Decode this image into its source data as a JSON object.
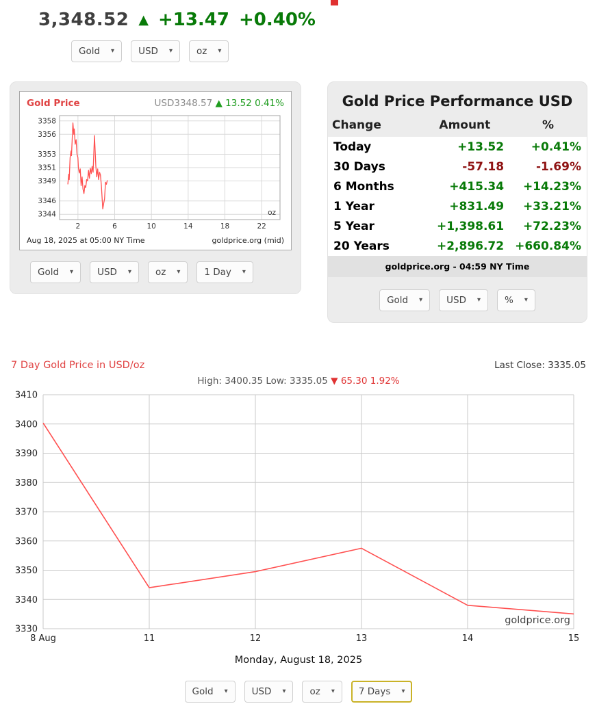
{
  "colors": {
    "green": "#087a08",
    "negative_red": "#8f1313",
    "title_red": "#e04343",
    "line_red": "#ff5050",
    "price_gray": "#3f3f3f"
  },
  "header": {
    "price": "3,348.52",
    "arrow": "▲",
    "change": "+13.47",
    "change_pct": "+0.40%",
    "selectors": [
      {
        "name": "metal",
        "value": "Gold"
      },
      {
        "name": "currency",
        "value": "USD"
      },
      {
        "name": "unit",
        "value": "oz"
      }
    ]
  },
  "mini_chart_panel": {
    "title": "Gold Price",
    "quote_price": "USD3348.57",
    "quote_change": "▲ 13.52 0.41%",
    "timestamp": "Aug 18, 2025 at 05:00 NY Time",
    "source": "goldprice.org (mid)",
    "selectors": [
      {
        "name": "metal",
        "value": "Gold"
      },
      {
        "name": "currency",
        "value": "USD"
      },
      {
        "name": "unit",
        "value": "oz"
      },
      {
        "name": "period",
        "value": "1 Day"
      }
    ]
  },
  "performance_panel": {
    "title": "Gold Price Performance USD",
    "columns": [
      "Change",
      "Amount",
      "%"
    ],
    "rows": [
      {
        "label": "Today",
        "amount": "+13.52",
        "pct": "+0.41%"
      },
      {
        "label": "30 Days",
        "amount": "-57.18",
        "pct": "-1.69%"
      },
      {
        "label": "6 Months",
        "amount": "+415.34",
        "pct": "+14.23%"
      },
      {
        "label": "1 Year",
        "amount": "+831.49",
        "pct": "+33.21%"
      },
      {
        "label": "5 Year",
        "amount": "+1,398.61",
        "pct": "+72.23%"
      },
      {
        "label": "20 Years",
        "amount": "+2,896.72",
        "pct": "+660.84%"
      }
    ],
    "footer": "goldprice.org - 04:59 NY Time",
    "selectors": [
      {
        "name": "metal",
        "value": "Gold"
      },
      {
        "name": "currency",
        "value": "USD"
      },
      {
        "name": "display",
        "value": "%"
      }
    ]
  },
  "main_chart": {
    "title": "7 Day Gold Price in USD/oz",
    "last_close_label": "Last Close: 3335.05",
    "high_low_label": "High: 3400.35 Low: 3335.05",
    "change_label": "▼ 65.30 1.92%",
    "date_label": "Monday, August 18, 2025",
    "selectors": [
      {
        "name": "metal",
        "value": "Gold"
      },
      {
        "name": "currency",
        "value": "USD"
      },
      {
        "name": "unit",
        "value": "oz"
      },
      {
        "name": "period",
        "value": "7 Days",
        "highlight": true
      }
    ]
  },
  "chart_data": [
    {
      "id": "intraday",
      "type": "line",
      "title": "Gold Price 1 Day (USD/oz)",
      "unit": "oz",
      "x_range": [
        0,
        24
      ],
      "x_ticks": [
        2,
        6,
        10,
        14,
        18,
        22
      ],
      "y_ticks": [
        3344,
        3346,
        3349,
        3351,
        3353,
        3356,
        3358
      ],
      "ylim": [
        3343.2,
        3358.8
      ],
      "line_color": "#ff5050",
      "grid": true,
      "points": [
        [
          0.9,
          3348.5
        ],
        [
          1.0,
          3350.0
        ],
        [
          1.05,
          3349.2
        ],
        [
          1.15,
          3352.5
        ],
        [
          1.25,
          3353.5
        ],
        [
          1.3,
          3352.8
        ],
        [
          1.45,
          3357.7
        ],
        [
          1.55,
          3356.0
        ],
        [
          1.6,
          3356.8
        ],
        [
          1.7,
          3354.5
        ],
        [
          1.8,
          3355.2
        ],
        [
          1.9,
          3353.0
        ],
        [
          2.0,
          3352.5
        ],
        [
          2.05,
          3351.0
        ],
        [
          2.15,
          3350.2
        ],
        [
          2.25,
          3350.8
        ],
        [
          2.35,
          3348.3
        ],
        [
          2.45,
          3349.6
        ],
        [
          2.55,
          3347.8
        ],
        [
          2.65,
          3347.1
        ],
        [
          2.75,
          3348.3
        ],
        [
          2.85,
          3348.0
        ],
        [
          2.95,
          3349.2
        ],
        [
          3.05,
          3349.0
        ],
        [
          3.15,
          3350.6
        ],
        [
          3.25,
          3349.4
        ],
        [
          3.35,
          3350.9
        ],
        [
          3.45,
          3350.1
        ],
        [
          3.55,
          3351.2
        ],
        [
          3.65,
          3350.3
        ],
        [
          3.7,
          3352.0
        ],
        [
          3.8,
          3355.8
        ],
        [
          3.9,
          3352.8
        ],
        [
          3.95,
          3351.2
        ],
        [
          4.05,
          3349.6
        ],
        [
          4.15,
          3350.8
        ],
        [
          4.25,
          3349.2
        ],
        [
          4.35,
          3350.3
        ],
        [
          4.45,
          3349.9
        ],
        [
          4.55,
          3348.4
        ],
        [
          4.65,
          3346.0
        ],
        [
          4.7,
          3344.8
        ],
        [
          4.8,
          3345.6
        ],
        [
          4.9,
          3346.3
        ],
        [
          5.0,
          3348.8
        ],
        [
          5.1,
          3348.5
        ],
        [
          5.2,
          3349.1
        ]
      ]
    },
    {
      "id": "seven_day",
      "type": "line",
      "title": "7 Day Gold Price in USD/oz",
      "x": [
        "8 Aug",
        "11",
        "12",
        "13",
        "14",
        "15"
      ],
      "values": [
        3400.35,
        3344.0,
        3349.5,
        3357.5,
        3338.0,
        3335.05
      ],
      "ylim": [
        3330,
        3410
      ],
      "y_tick_step": 10,
      "grid": true,
      "legend": "none",
      "line_color": "#ff5050",
      "watermark": "goldprice.org",
      "high": 3400.35,
      "low": 3335.05,
      "change": -65.3,
      "change_pct": -1.92,
      "last_close": 3335.05
    }
  ]
}
